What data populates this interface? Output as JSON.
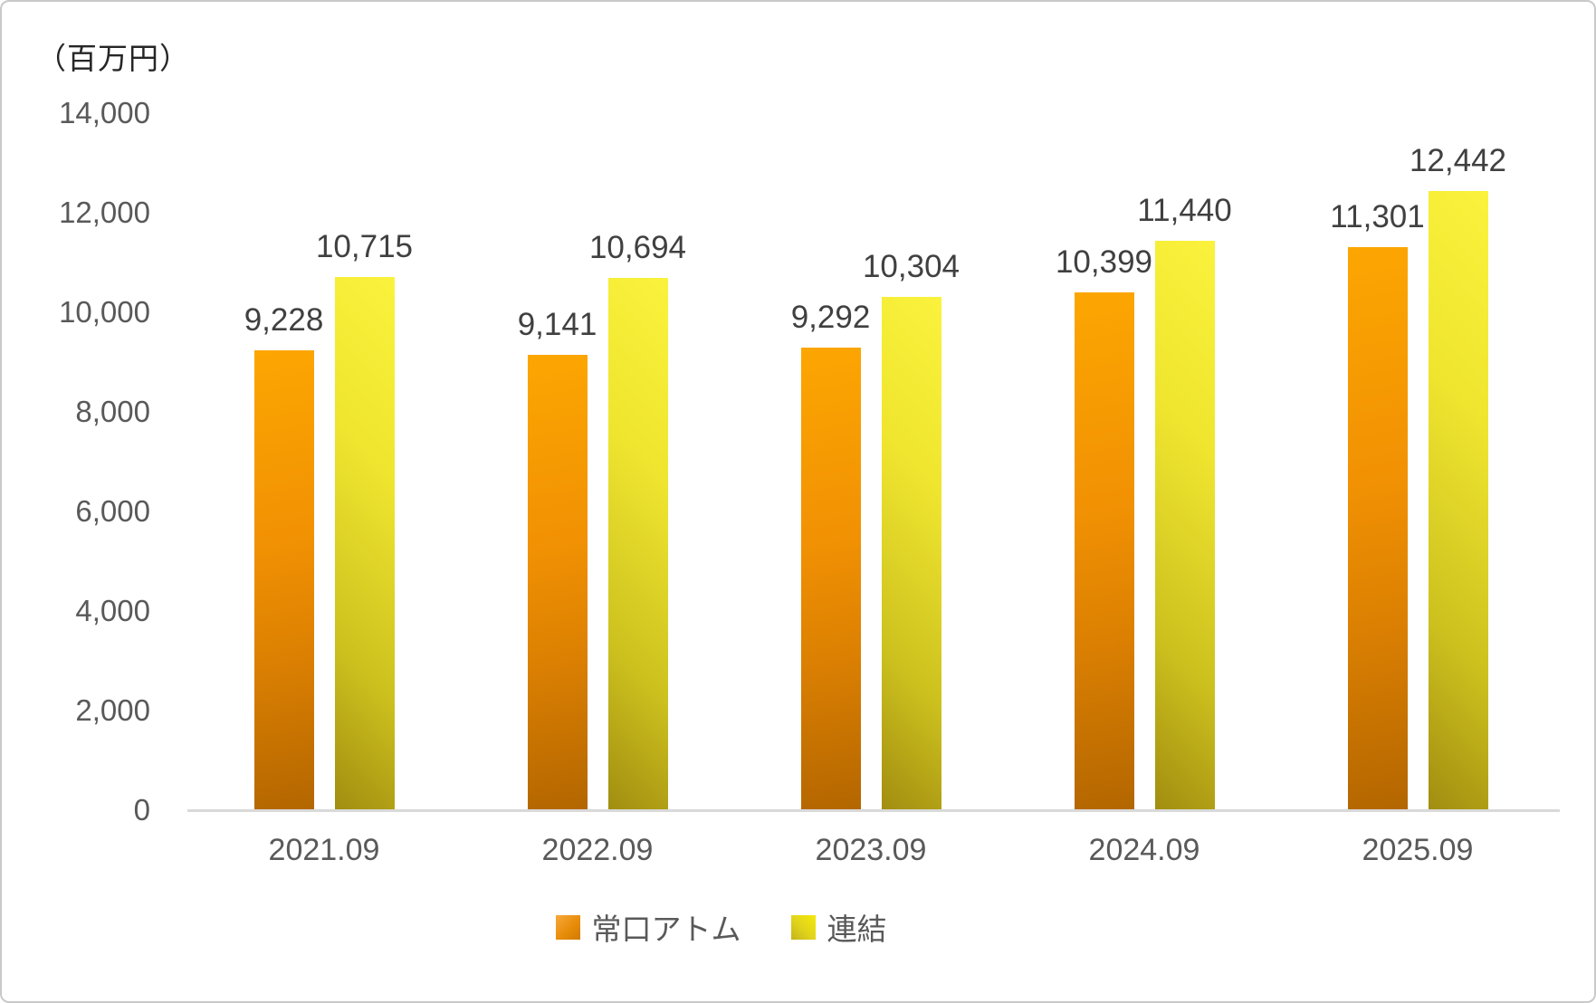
{
  "chart_data": {
    "type": "bar",
    "title": "",
    "unit_label": "（百万円）",
    "categories": [
      "2021.09",
      "2022.09",
      "2023.09",
      "2024.09",
      "2025.09"
    ],
    "series": [
      {
        "name": "常口アトム",
        "values": [
          9228,
          9141,
          9292,
          10399,
          11301
        ],
        "labels": [
          "9,228",
          "9,141",
          "9,292",
          "10,399",
          "11,301"
        ],
        "gradient": [
          "#fca602",
          "#b36600"
        ],
        "gradient_direction": "top-light-to-bottom-dark"
      },
      {
        "name": "連結",
        "values": [
          10715,
          10694,
          10304,
          11440,
          12442
        ],
        "labels": [
          "10,715",
          "10,694",
          "10,304",
          "11,440",
          "12,442"
        ],
        "gradient": [
          "#faf23c",
          "#a18d10"
        ],
        "gradient_direction": "top-right-light-to-bottom-left-dark"
      }
    ],
    "ylim": [
      0,
      14000
    ],
    "yticks": [
      {
        "value": 0,
        "label": "0"
      },
      {
        "value": 2000,
        "label": "2,000"
      },
      {
        "value": 4000,
        "label": "4,000"
      },
      {
        "value": 6000,
        "label": "6,000"
      },
      {
        "value": 8000,
        "label": "8,000"
      },
      {
        "value": 10000,
        "label": "10,000"
      },
      {
        "value": 12000,
        "label": "12,000"
      },
      {
        "value": 14000,
        "label": "14,000"
      }
    ],
    "grid": false,
    "legend_position": "bottom",
    "colors": {
      "axis_line": "#d9d9d9",
      "tick_text": "#595959",
      "data_label_text": "#404040",
      "unit_label_text": "#262626"
    }
  }
}
